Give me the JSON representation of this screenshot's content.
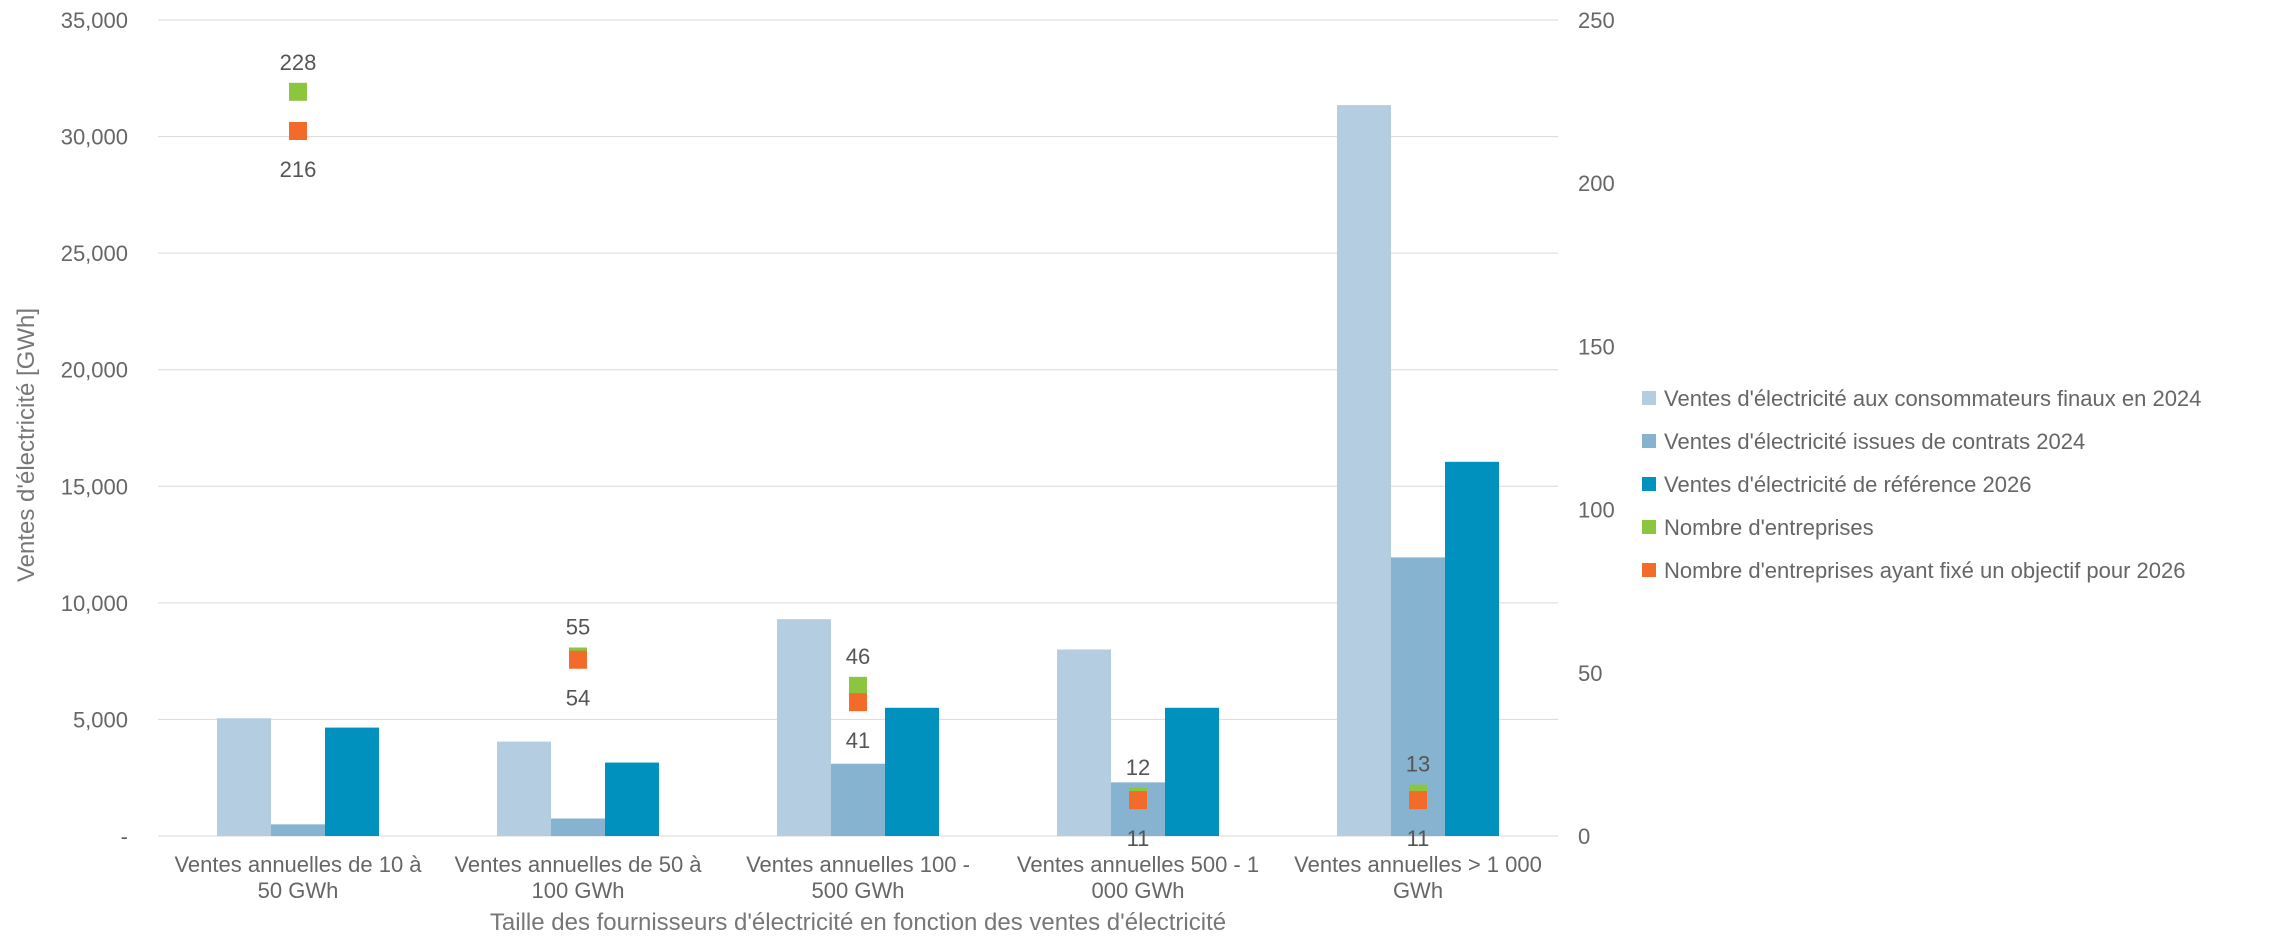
{
  "chart_data": {
    "type": "bar",
    "xlabel": "Taille des fournisseurs d'électricité en fonction des ventes d'électricité",
    "ylabel": "Ventes d'électricité [GWh]",
    "categories": [
      [
        "Ventes annuelles de 10 à",
        "50 GWh"
      ],
      [
        "Ventes annuelles de 50 à",
        "100 GWh"
      ],
      [
        "Ventes annuelles 100 -",
        "500 GWh"
      ],
      [
        "Ventes annuelles 500 - 1",
        "000 GWh"
      ],
      [
        "Ventes annuelles > 1 000",
        "GWh"
      ]
    ],
    "ylim": [
      0,
      35000
    ],
    "yticks": [
      "-",
      "5,000",
      "10,000",
      "15,000",
      "20,000",
      "25,000",
      "30,000",
      "35,000"
    ],
    "y2lim": [
      0,
      250
    ],
    "y2ticks": [
      "0",
      "50",
      "100",
      "150",
      "200",
      "250"
    ],
    "grid": true,
    "legend_position": "right",
    "bar_series": [
      {
        "name": "Ventes d'électricité aux consommateurs finaux en 2024",
        "color": "#b4cde0",
        "values": [
          5050,
          4050,
          9300,
          8000,
          31350
        ]
      },
      {
        "name": "Ventes d'électricité issues de contrats 2024",
        "color": "#86b4d0",
        "values": [
          500,
          750,
          3100,
          2300,
          11950
        ]
      },
      {
        "name": "Ventes d'électricité de référence 2026",
        "color": "#0191bf",
        "values": [
          4650,
          3150,
          5500,
          5500,
          16050
        ]
      }
    ],
    "marker_series": [
      {
        "name": "Nombre d'entreprises",
        "color": "#8cc63f",
        "axis": "secondary",
        "values": [
          228,
          55,
          46,
          12,
          13
        ],
        "labels": [
          "228",
          "55",
          "46",
          "12",
          "13"
        ]
      },
      {
        "name": "Nombre d'entreprises ayant fixé un objectif pour 2026",
        "color": "#f26b2a",
        "axis": "secondary",
        "values": [
          216,
          54,
          41,
          11,
          11
        ],
        "labels": [
          "216",
          "54",
          "41",
          "11",
          "11"
        ]
      }
    ]
  }
}
